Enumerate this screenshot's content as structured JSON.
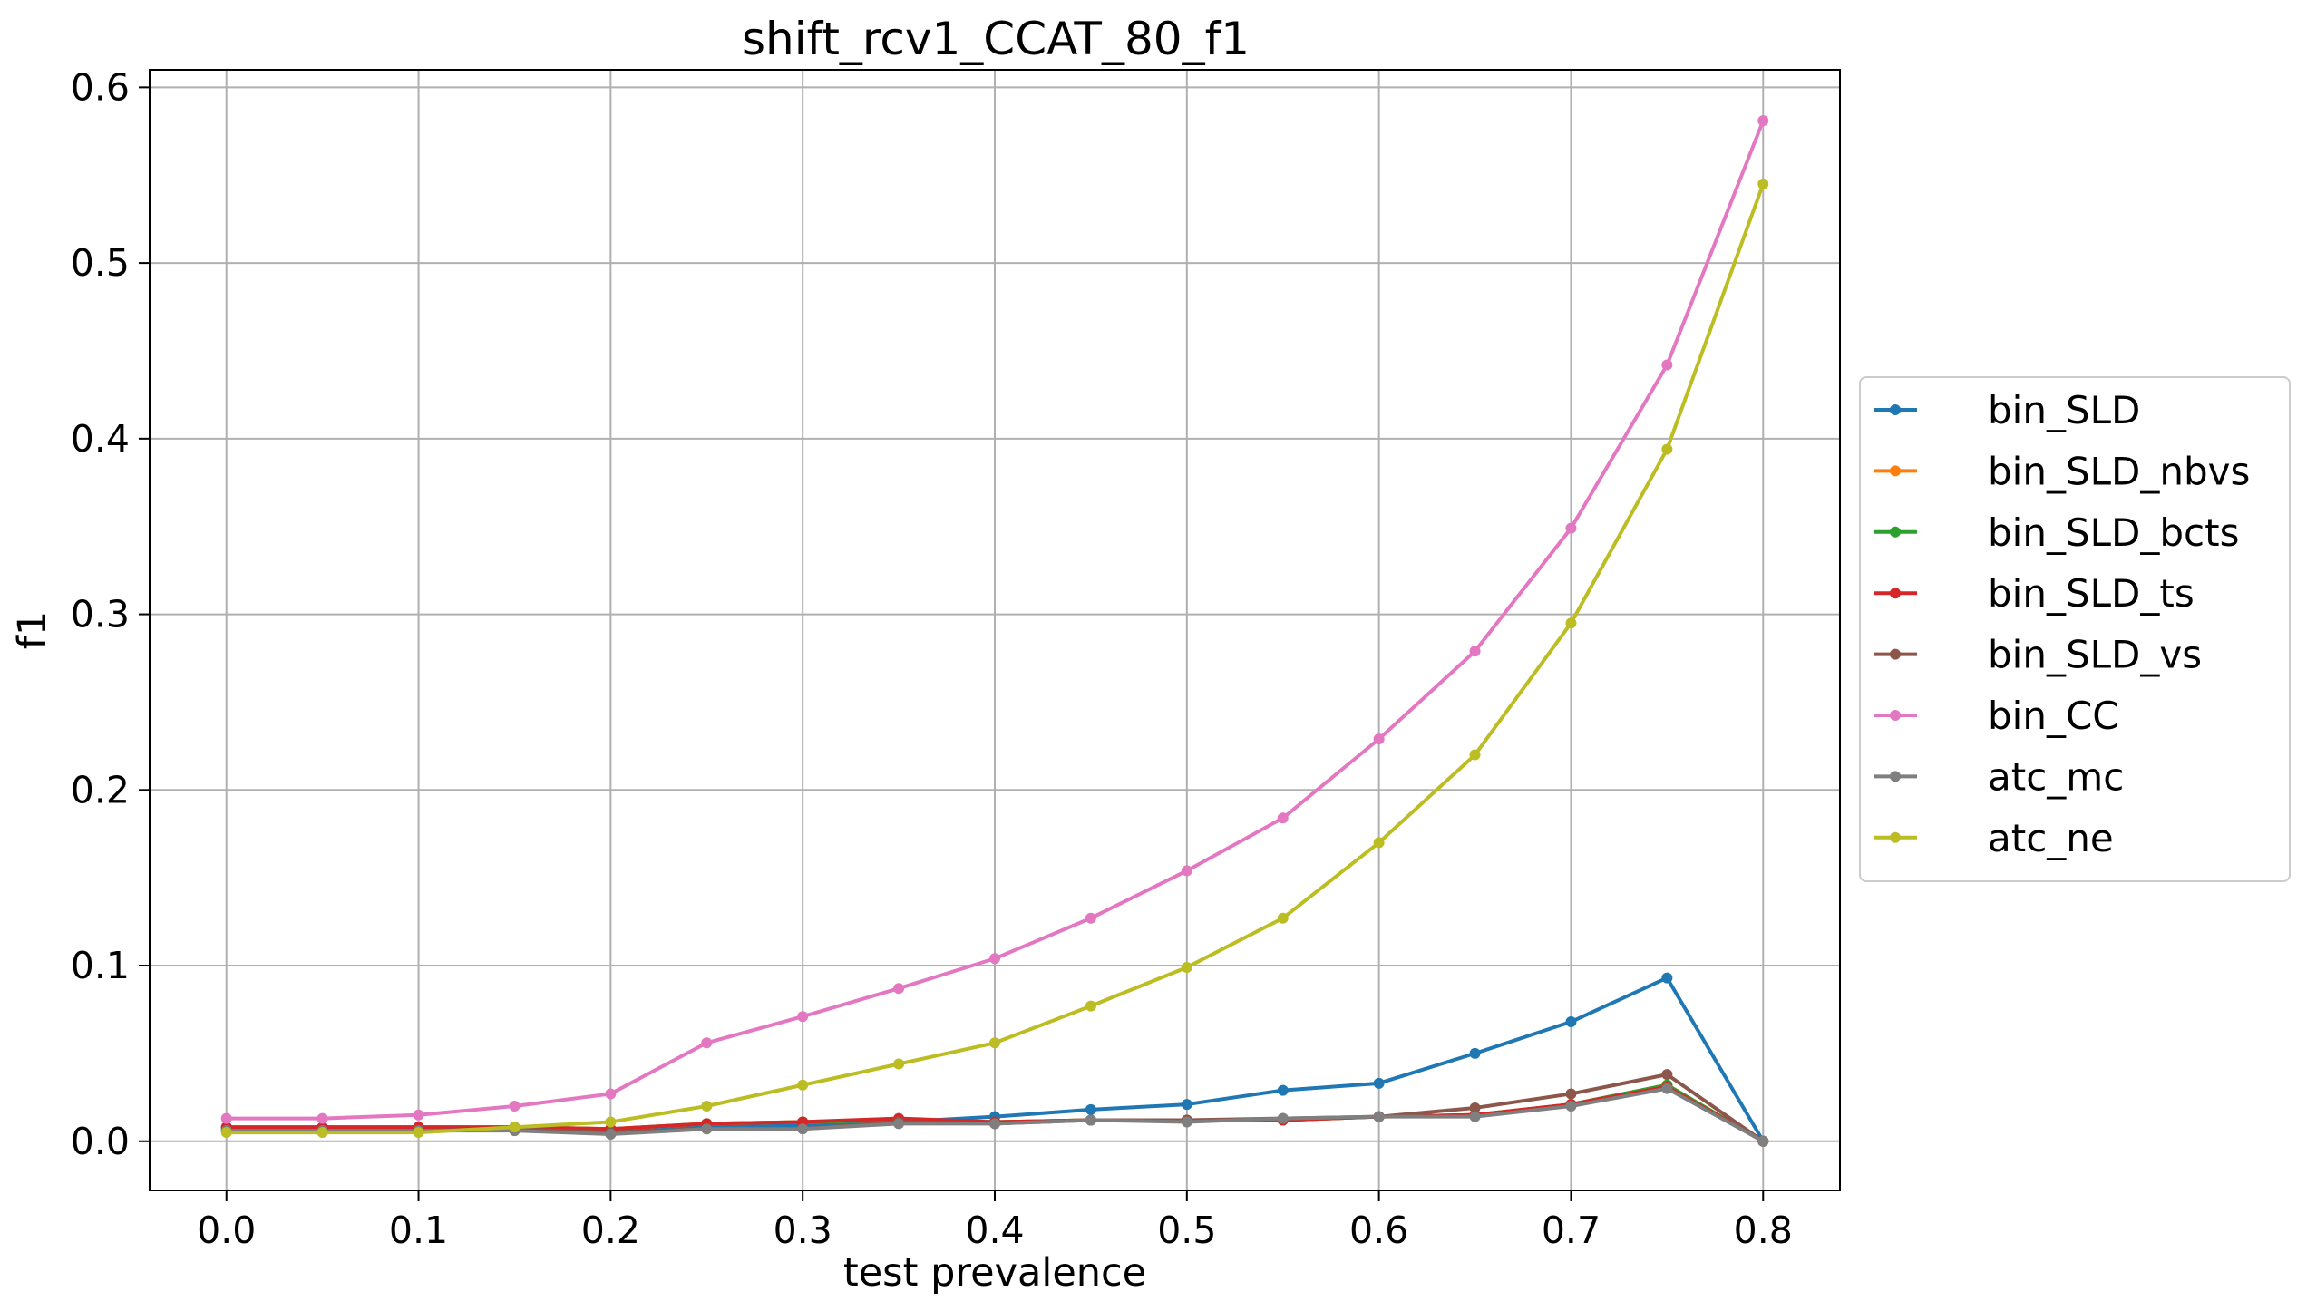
{
  "chart_data": {
    "type": "line",
    "title": "shift_rcv1_CCAT_80_f1",
    "xlabel": "test prevalence",
    "ylabel": "f1",
    "xlim": [
      -0.04,
      0.84
    ],
    "ylim": [
      -0.028,
      0.61
    ],
    "xticks": [
      "0.0",
      "0.1",
      "0.2",
      "0.3",
      "0.4",
      "0.5",
      "0.6",
      "0.7",
      "0.8"
    ],
    "yticks": [
      "0.0",
      "0.1",
      "0.2",
      "0.3",
      "0.4",
      "0.5",
      "0.6"
    ],
    "grid": true,
    "legend_position": "center-right-outside",
    "x": [
      0.0,
      0.05,
      0.1,
      0.15,
      0.2,
      0.25,
      0.3,
      0.35,
      0.4,
      0.45,
      0.5,
      0.55,
      0.6,
      0.65,
      0.7,
      0.75,
      0.8
    ],
    "series": [
      {
        "name": "bin_SLD",
        "color": "#1f77b4",
        "values": [
          0.007,
          0.007,
          0.007,
          0.007,
          0.005,
          0.008,
          0.009,
          0.011,
          0.014,
          0.018,
          0.021,
          0.029,
          0.033,
          0.05,
          0.068,
          0.093,
          0.0
        ]
      },
      {
        "name": "bin_SLD_nbvs",
        "color": "#ff7f0e",
        "values": [
          0.008,
          0.008,
          0.008,
          0.008,
          0.007,
          0.01,
          0.011,
          0.012,
          0.011,
          0.012,
          0.012,
          0.012,
          0.014,
          0.015,
          0.021,
          0.032,
          0.0
        ]
      },
      {
        "name": "bin_SLD_bcts",
        "color": "#2ca02c",
        "values": [
          0.008,
          0.008,
          0.008,
          0.008,
          0.007,
          0.01,
          0.011,
          0.012,
          0.011,
          0.012,
          0.012,
          0.012,
          0.014,
          0.015,
          0.021,
          0.032,
          0.0
        ]
      },
      {
        "name": "bin_SLD_ts",
        "color": "#d62728",
        "values": [
          0.008,
          0.008,
          0.008,
          0.008,
          0.007,
          0.01,
          0.011,
          0.013,
          0.011,
          0.012,
          0.012,
          0.012,
          0.014,
          0.015,
          0.021,
          0.031,
          0.0
        ]
      },
      {
        "name": "bin_SLD_vs",
        "color": "#8c564b",
        "values": [
          0.006,
          0.006,
          0.006,
          0.007,
          0.005,
          0.007,
          0.007,
          0.011,
          0.01,
          0.012,
          0.012,
          0.013,
          0.014,
          0.019,
          0.027,
          0.038,
          0.0
        ]
      },
      {
        "name": "bin_CC",
        "color": "#e377c2",
        "values": [
          0.013,
          0.013,
          0.015,
          0.02,
          0.027,
          0.056,
          0.071,
          0.087,
          0.104,
          0.127,
          0.154,
          0.184,
          0.229,
          0.279,
          0.349,
          0.442,
          0.581
        ]
      },
      {
        "name": "atc_mc",
        "color": "#7f7f7f",
        "values": [
          0.006,
          0.006,
          0.006,
          0.006,
          0.004,
          0.007,
          0.007,
          0.01,
          0.01,
          0.012,
          0.011,
          0.013,
          0.014,
          0.014,
          0.02,
          0.03,
          0.0
        ]
      },
      {
        "name": "atc_ne",
        "color": "#bcbd22",
        "values": [
          0.005,
          0.005,
          0.005,
          0.008,
          0.011,
          0.02,
          0.032,
          0.044,
          0.056,
          0.077,
          0.099,
          0.127,
          0.17,
          0.22,
          0.295,
          0.394,
          0.545
        ]
      }
    ]
  }
}
